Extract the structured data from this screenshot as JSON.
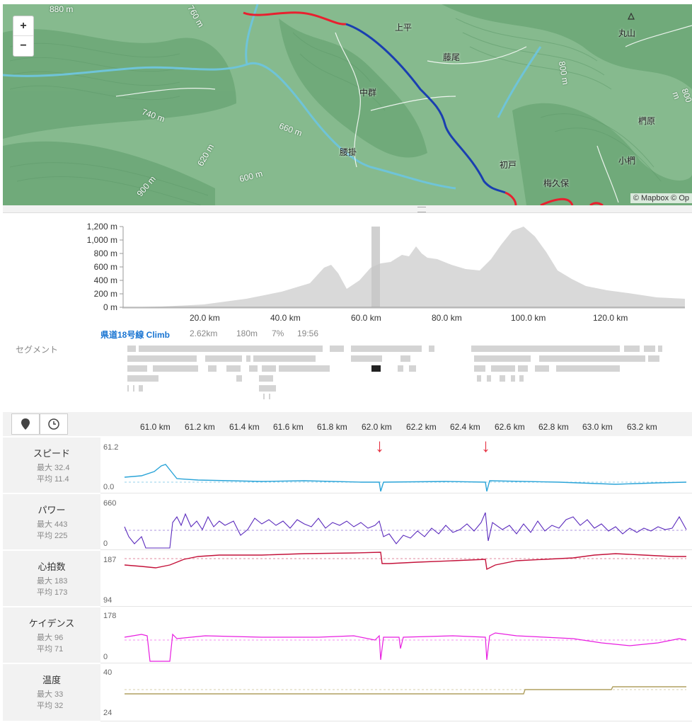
{
  "map": {
    "zoom_in_label": "+",
    "zoom_out_label": "−",
    "attribution": "© Mapbox © Op",
    "place_labels": [
      "上平",
      "藤尾",
      "中群",
      "腰掛",
      "初戸",
      "梅久保",
      "丸山",
      "椚原",
      "小椚"
    ],
    "contour_labels": [
      "880 m",
      "760 m",
      "740 m",
      "660 m",
      "620 m",
      "600 m",
      "900 m",
      "800 m",
      "800 m"
    ],
    "route_colors": {
      "red": "#e8202f",
      "blue": "#1a3fb0"
    }
  },
  "elevation": {
    "y_ticks": [
      "1,200 m",
      "1,000 m",
      "800 m",
      "600 m",
      "400 m",
      "200 m",
      "0 m"
    ],
    "x_ticks": [
      "20.0 km",
      "40.0 km",
      "60.0 km",
      "80.0 km",
      "100.0 km",
      "120.0 km"
    ]
  },
  "segment": {
    "label": "セグメント",
    "name": "県道18号線 Climb",
    "distance": "2.62km",
    "elevation": "180m",
    "grade": "7%",
    "time": "19:56"
  },
  "detail": {
    "location_icon": "map-pin-icon",
    "time_icon": "clock-icon",
    "x_ticks": [
      "61.0 km",
      "61.2 km",
      "61.4 km",
      "61.6 km",
      "61.8 km",
      "62.0 km",
      "62.2 km",
      "62.4 km",
      "62.6 km",
      "62.8 km",
      "63.0 km",
      "63.2 km"
    ],
    "panels": [
      {
        "title": "スピード",
        "max": "最大 32.4",
        "avg": "平均 11.4",
        "top": "61.2",
        "bottom": "0.0",
        "color": "#2aa4d8"
      },
      {
        "title": "パワー",
        "max": "最大 443",
        "avg": "平均 225",
        "top": "660",
        "bottom": "0",
        "color": "#5b2bbd"
      },
      {
        "title": "心拍数",
        "max": "最大 183",
        "avg": "平均 173",
        "top": "187",
        "bottom": "94",
        "color": "#c4123a"
      },
      {
        "title": "ケイデンス",
        "max": "最大 96",
        "avg": "平均 71",
        "top": "178",
        "bottom": "0",
        "color": "#e81ee0"
      },
      {
        "title": "温度",
        "max": "最大 33",
        "avg": "平均 32",
        "top": "40",
        "bottom": "24",
        "color": "#b0a060"
      }
    ]
  }
}
